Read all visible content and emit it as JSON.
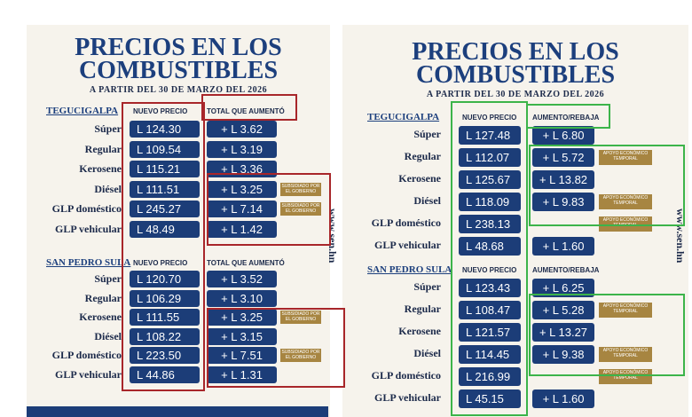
{
  "panels": [
    {
      "title_lines": [
        "PRECIOS EN LOS",
        "COMBUSTIBLES"
      ],
      "subtitle": "A PARTIR DEL 30 DE MARZO DEL 2026",
      "website": "www.sen.hn",
      "sections": [
        {
          "city": "TEGUCIGALPA",
          "price_header": "NUEVO PRECIO",
          "change_header": "TOTAL QUE AUMENTÓ",
          "rows": [
            {
              "product": "Súper",
              "price": "L 124.30",
              "change": "+ L 3.62"
            },
            {
              "product": "Regular",
              "price": "L 109.54",
              "change": "+ L 3.19"
            },
            {
              "product": "Kerosene",
              "price": "L 115.21",
              "change": "+ L 3.36"
            },
            {
              "product": "Diésel",
              "price": "L 111.51",
              "change": "+ L 3.25",
              "note": "SUBSIDIADO POR EL GOBIERNO"
            },
            {
              "product": "GLP doméstico",
              "price": "L 245.27",
              "change": "+ L 7.14",
              "note": "SUBSIDIADO POR EL GOBIERNO"
            },
            {
              "product": "GLP vehicular",
              "price": "L 48.49",
              "change": "+ L 1.42"
            }
          ]
        },
        {
          "city": "SAN PEDRO SULA",
          "price_header": "NUEVO PRECIO",
          "change_header": "TOTAL QUE AUMENTÓ",
          "rows": [
            {
              "product": "Súper",
              "price": "L 120.70",
              "change": "+ L 3.52"
            },
            {
              "product": "Regular",
              "price": "L 106.29",
              "change": "+ L 3.10"
            },
            {
              "product": "Kerosene",
              "price": "L 111.55",
              "change": "+ L 3.25",
              "note": "SUBSIDIADO POR EL GOBIERNO"
            },
            {
              "product": "Diésel",
              "price": "L 108.22",
              "change": "+ L 3.15"
            },
            {
              "product": "GLP doméstico",
              "price": "L 223.50",
              "change": "+ L 7.51",
              "note": "SUBSIDIADO POR EL GOBIERNO"
            },
            {
              "product": "GLP vehicular",
              "price": "L 44.86",
              "change": "+ L 1.31"
            }
          ]
        }
      ]
    },
    {
      "title_lines": [
        "PRECIOS EN LOS",
        "COMBUSTIBLES"
      ],
      "subtitle": "A PARTIR DEL 30 DE MARZO DEL 2026",
      "website": "www.sen.hn",
      "sections": [
        {
          "city": "TEGUCIGALPA",
          "price_header": "NUEVO PRECIO",
          "change_header": "AUMENTO/REBAJA",
          "rows": [
            {
              "product": "Súper",
              "price": "L 127.48",
              "change": "+ L 6.80"
            },
            {
              "product": "Regular",
              "price": "L 112.07",
              "change": "+ L 5.72",
              "note": "APOYO ECONÓMICO TEMPORAL"
            },
            {
              "product": "Kerosene",
              "price": "L 125.67",
              "change": "+ L 13.82"
            },
            {
              "product": "Diésel",
              "price": "L 118.09",
              "change": "+ L 9.83",
              "note": "APOYO ECONÓMICO TEMPORAL"
            },
            {
              "product": "GLP doméstico",
              "price": "L 238.13",
              "note": "APOYO ECONÓMICO TEMPORAL"
            },
            {
              "product": "GLP vehicular",
              "price": "L 48.68",
              "change": "+ L 1.60"
            }
          ]
        },
        {
          "city": "SAN PEDRO SULA",
          "price_header": "NUEVO PRECIO",
          "change_header": "AUMENTO/REBAJA",
          "rows": [
            {
              "product": "Súper",
              "price": "L 123.43",
              "change": "+ L 6.25"
            },
            {
              "product": "Regular",
              "price": "L 108.47",
              "change": "+ L 5.28",
              "note": "APOYO ECONÓMICO TEMPORAL"
            },
            {
              "product": "Kerosene",
              "price": "L 121.57",
              "change": "+ L 13.27"
            },
            {
              "product": "Diésel",
              "price": "L 114.45",
              "change": "+ L 9.38",
              "note": "APOYO ECONÓMICO TEMPORAL"
            },
            {
              "product": "GLP doméstico",
              "price": "L 216.99",
              "note": "APOYO ECONÓMICO TEMPORAL"
            },
            {
              "product": "GLP vehicular",
              "price": "L 45.15",
              "change": "+ L 1.60"
            }
          ]
        }
      ]
    }
  ]
}
